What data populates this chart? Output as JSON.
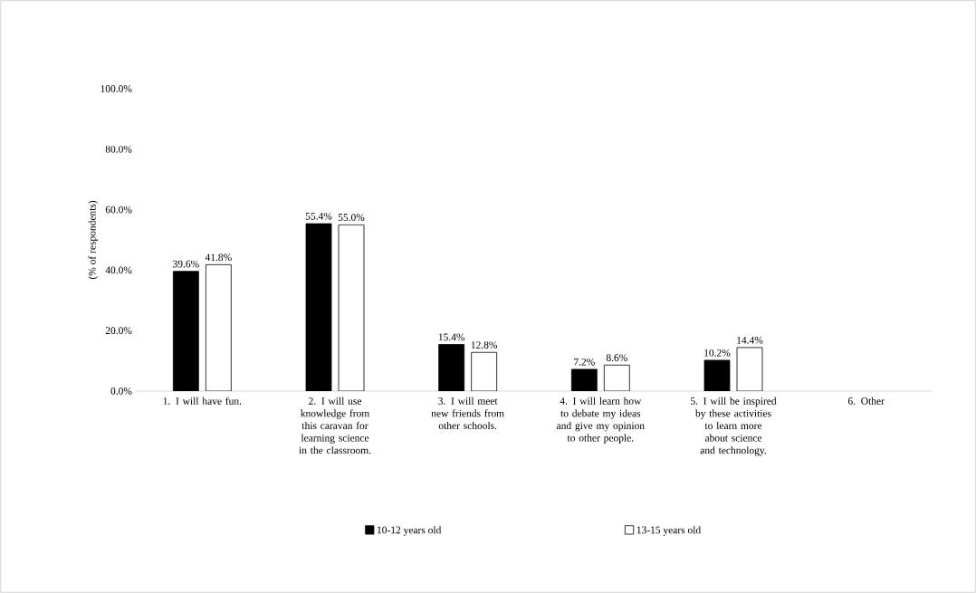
{
  "chart_data": {
    "type": "bar",
    "ylabel": "(% of respondents)",
    "categories": [
      "1.  I will have fun.",
      "2. I will use knowledge from this caravan for learning science in the classroom.",
      "3. I will meet new friends from other schools.",
      "4. I will learn how to debate my ideas and give my opinion to other people.",
      "5. I will be inspired by these activities to learn more about science and technology.",
      "6. Other"
    ],
    "series": [
      {
        "name": "10-12 years old",
        "color": "#000000",
        "values": [
          39.6,
          55.4,
          15.4,
          7.2,
          10.2,
          null
        ],
        "value_labels": [
          "39.6%",
          "55.4%",
          "15.4%",
          "7.2%",
          "10.2%",
          null
        ]
      },
      {
        "name": "13-15 years old",
        "color": "#ffffff",
        "values": [
          41.8,
          55.0,
          12.8,
          8.6,
          14.4,
          null
        ],
        "value_labels": [
          "41.8%",
          "55.0%",
          "12.8%",
          "8.6%",
          "14.4%",
          null
        ]
      }
    ],
    "ylim": [
      0,
      100
    ],
    "yticks": [
      {
        "value": 0,
        "label": "0.0%"
      },
      {
        "value": 20,
        "label": "20.0%"
      },
      {
        "value": 40,
        "label": "40.0%"
      },
      {
        "value": 60,
        "label": "60.0%"
      },
      {
        "value": 80,
        "label": "80.0%"
      },
      {
        "value": 100,
        "label": "100.0%"
      }
    ],
    "legend": "bottom",
    "grid": false
  }
}
